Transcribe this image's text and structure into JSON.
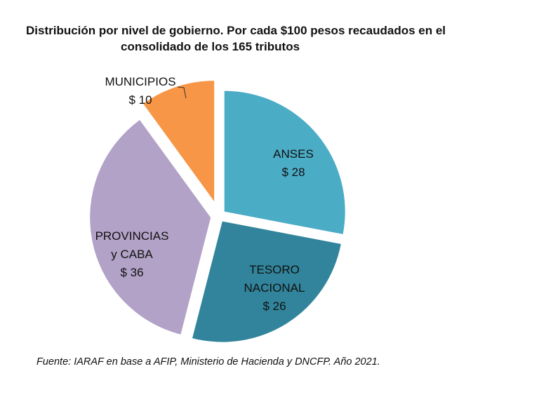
{
  "chart_data": {
    "type": "pie",
    "title": [
      "Distribución por nivel de gobierno. Por cada $100 pesos recaudados en el",
      "consolidado de los 165 tributos"
    ],
    "slices": [
      {
        "label": [
          "ANSES"
        ],
        "value": 28,
        "value_label": "$ 28",
        "color": "#4bacc6"
      },
      {
        "label": [
          "TESORO",
          "NACIONAL"
        ],
        "value": 26,
        "value_label": "$ 26",
        "color": "#31849b"
      },
      {
        "label": [
          "PROVINCIAS",
          "y CABA"
        ],
        "value": 36,
        "value_label": "$ 36",
        "color": "#b2a2c7"
      },
      {
        "label": [
          "MUNICIPIOS"
        ],
        "value": 10,
        "value_label": "$ 10",
        "color": "#f79646"
      }
    ],
    "exploded": true,
    "start": "12 o'clock, clockwise",
    "source": "Fuente: IARAF en base a AFIP, Ministerio de Hacienda y DNCFP. Año 2021."
  }
}
